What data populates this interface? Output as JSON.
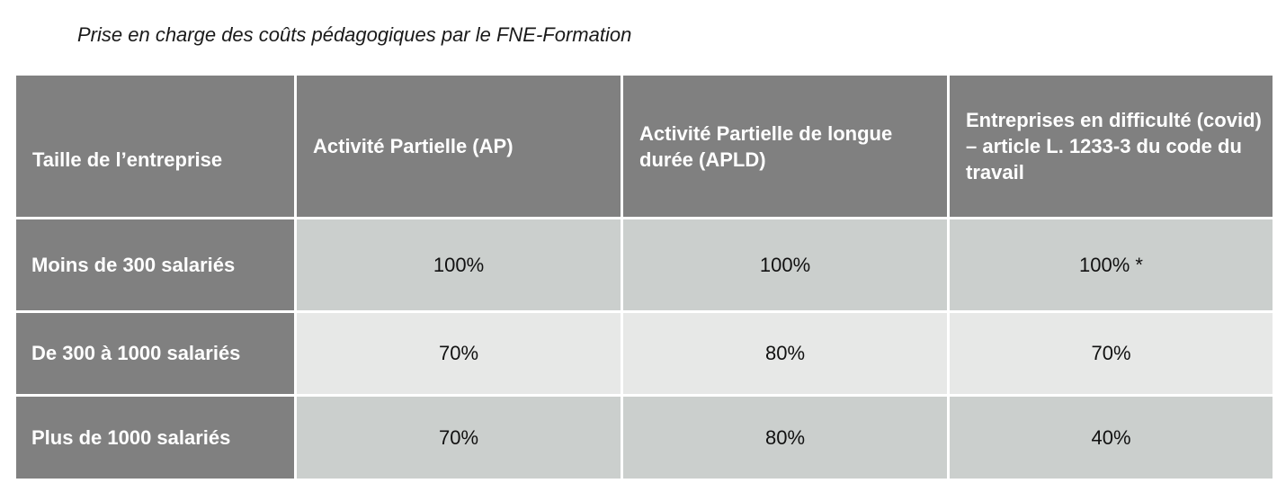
{
  "caption": "Prise en charge des coûts pédagogiques par le FNE-Formation",
  "table": {
    "headers": [
      "Taille de l’entreprise",
      "Activité Partielle (AP)",
      "Activité Partielle de longue durée (APLD)",
      "Entreprises en difficulté (covid) – article L. 1233-3 du code du travail"
    ],
    "rows": [
      {
        "label": "Moins de 300 salariés",
        "values": [
          "100%",
          "100%",
          "100% *"
        ]
      },
      {
        "label": "De 300 à 1000 salariés",
        "values": [
          "70%",
          "80%",
          "70%"
        ]
      },
      {
        "label": "Plus de 1000 salariés",
        "values": [
          "70%",
          "80%",
          "40%"
        ]
      }
    ]
  },
  "colors": {
    "header_bg": "#808080",
    "row_dark": "#cbcfcd",
    "row_light": "#e7e8e7"
  }
}
